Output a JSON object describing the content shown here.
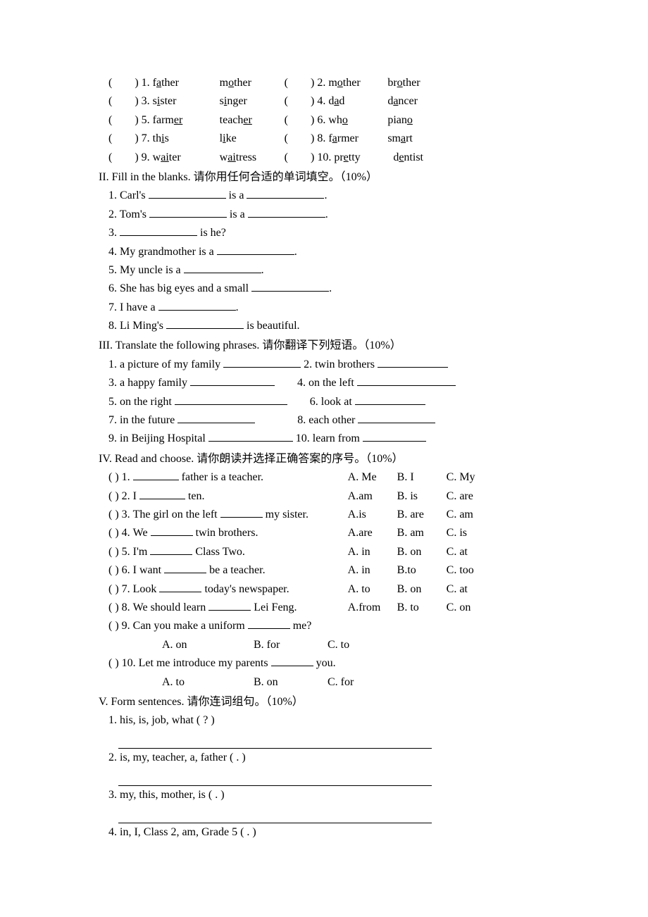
{
  "sec1": {
    "pairs": [
      {
        "n": "1",
        "w1_pre": "f",
        "w1_u": "a",
        "w1_post": "ther",
        "w2_pre": "m",
        "w2_u": "o",
        "w2_post": "ther",
        "n2": "2",
        "w3_pre": "m",
        "w3_u": "o",
        "w3_post": "ther",
        "w4_pre": "br",
        "w4_u": "o",
        "w4_post": "ther"
      },
      {
        "n": "3",
        "w1_pre": "s",
        "w1_u": "i",
        "w1_post": "ster",
        "w2_pre": "s",
        "w2_u": "i",
        "w2_post": "nger",
        "n2": "4",
        "w3_pre": "d",
        "w3_u": "a",
        "w3_post": "d",
        "w4_pre": "d",
        "w4_u": "a",
        "w4_post": "ncer"
      },
      {
        "n": "5",
        "w1_pre": "farm",
        "w1_u": "er",
        "w1_post": "",
        "w2_pre": "teach",
        "w2_u": "er",
        "w2_post": "",
        "n2": "6",
        "w3_pre": "wh",
        "w3_u": "o",
        "w3_post": "",
        "w4_pre": "pian",
        "w4_u": "o",
        "w4_post": ""
      },
      {
        "n": "7",
        "w1_pre": "th",
        "w1_u": "i",
        "w1_post": "s",
        "w2_pre": "l",
        "w2_u": "i",
        "w2_post": "ke",
        "n2": "8",
        "w3_pre": "f",
        "w3_u": "a",
        "w3_post": "rmer",
        "w4_pre": "sm",
        "w4_u": "a",
        "w4_post": "rt"
      },
      {
        "n": "9",
        "w1_pre": "w",
        "w1_u": "ai",
        "w1_post": "ter",
        "w2_pre": "w",
        "w2_u": "ai",
        "w2_post": "tress",
        "n2": "10",
        "w3_pre": "pr",
        "w3_u": "e",
        "w3_post": "tty",
        "w4_pre": "d",
        "w4_u": "e",
        "w4_post": "ntist"
      }
    ]
  },
  "sec2": {
    "title": "II. Fill in the blanks.  请你用任何合适的单词填空。（10%）",
    "items": {
      "i1a": "1. Carl's ",
      "i1b": " is a ",
      "i1c": ".",
      "i2a": "2. Tom's ",
      "i2b": " is a ",
      "i2c": ".",
      "i3a": "3. ",
      "i3b": " is he?",
      "i4a": "4. My grandmother is a ",
      "i4b": ".",
      "i5a": "5. My uncle is a ",
      "i5b": ".",
      "i6a": "6. She has big eyes and a small ",
      "i6b": ".",
      "i7a": "7. I have a ",
      "i7b": ".",
      "i8a": "8. Li Ming's ",
      "i8b": " is beautiful."
    }
  },
  "sec3": {
    "title": "III. Translate the following phrases.  请你翻译下列短语。（10%）",
    "r1a": "1. a picture of my family ",
    "r1b": " 2. twin brothers ",
    "r2a": "3. a happy family ",
    "r2b": "4. on the left ",
    "r3a": "5. on the right ",
    "r3b": "6. look at ",
    "r4a": "7. in the future ",
    "r4b": "8. each other ",
    "r5a": "9. in Beijing Hospital ",
    "r5b": " 10. learn from "
  },
  "sec4": {
    "title": "IV. Read and choose.  请你朗读并选择正确答案的序号。（10%）",
    "q": [
      {
        "n": "1",
        "stem_a": " father is a teacher.",
        "a": "A. Me",
        "b": "B. I",
        "c": "C. My"
      },
      {
        "n": "2",
        "stem_a": " ten.",
        "pre": "I ",
        "a": "A.am",
        "b": "B. is",
        "c": "C. are"
      },
      {
        "n": "3",
        "stem_pre": "The girl on the left ",
        "stem_post": " my sister.",
        "a": "A.is",
        "b": "B. are",
        "c": "C. am"
      },
      {
        "n": "4",
        "stem_pre": "We ",
        "stem_post": " twin brothers.",
        "a": "A.are",
        "b": "B. am",
        "c": "C. is"
      },
      {
        "n": "5",
        "stem_pre": "I'm ",
        "stem_post": " Class Two.",
        "a": "A. in",
        "b": "B. on",
        "c": "C. at"
      },
      {
        "n": "6",
        "stem_pre": "I want ",
        "stem_post": " be a teacher.",
        "a": "A. in",
        "b": "B.to",
        "c": "C. too"
      },
      {
        "n": "7",
        "stem_pre": "Look ",
        "stem_post": " today's newspaper.",
        "a": "A. to",
        "b": "B. on",
        "c": "C. at"
      },
      {
        "n": "8",
        "stem_pre": "We should learn ",
        "stem_post": " Lei Feng.",
        "a": "A.from",
        "b": "B. to",
        "c": "C. on"
      },
      {
        "n": "9",
        "stem_pre": "Can you make a uniform ",
        "stem_post": " me?",
        "a": "A. on",
        "b": "B. for",
        "c": "C. to"
      },
      {
        "n": "10",
        "stem_pre": "Let me introduce my parents ",
        "stem_post": " you.",
        "a": "A. to",
        "b": "B. on",
        "c": "C. for"
      }
    ]
  },
  "sec5": {
    "title": "V. Form sentences.  请你连词组句。（10%）",
    "i1": "1. his,   is,   job,   what ( ? )",
    "i2": "2. is,   my,   teacher,   a,   father ( . )",
    "i3": "3. my,   this,   mother,   is ( . )",
    "i4": "4. in,   I,   Class 2,   am,   Grade 5 ( . )"
  },
  "layout": {
    "col_w1": 95,
    "col_w2": 84,
    "col_gap1": 92,
    "col_gap2": 76
  }
}
